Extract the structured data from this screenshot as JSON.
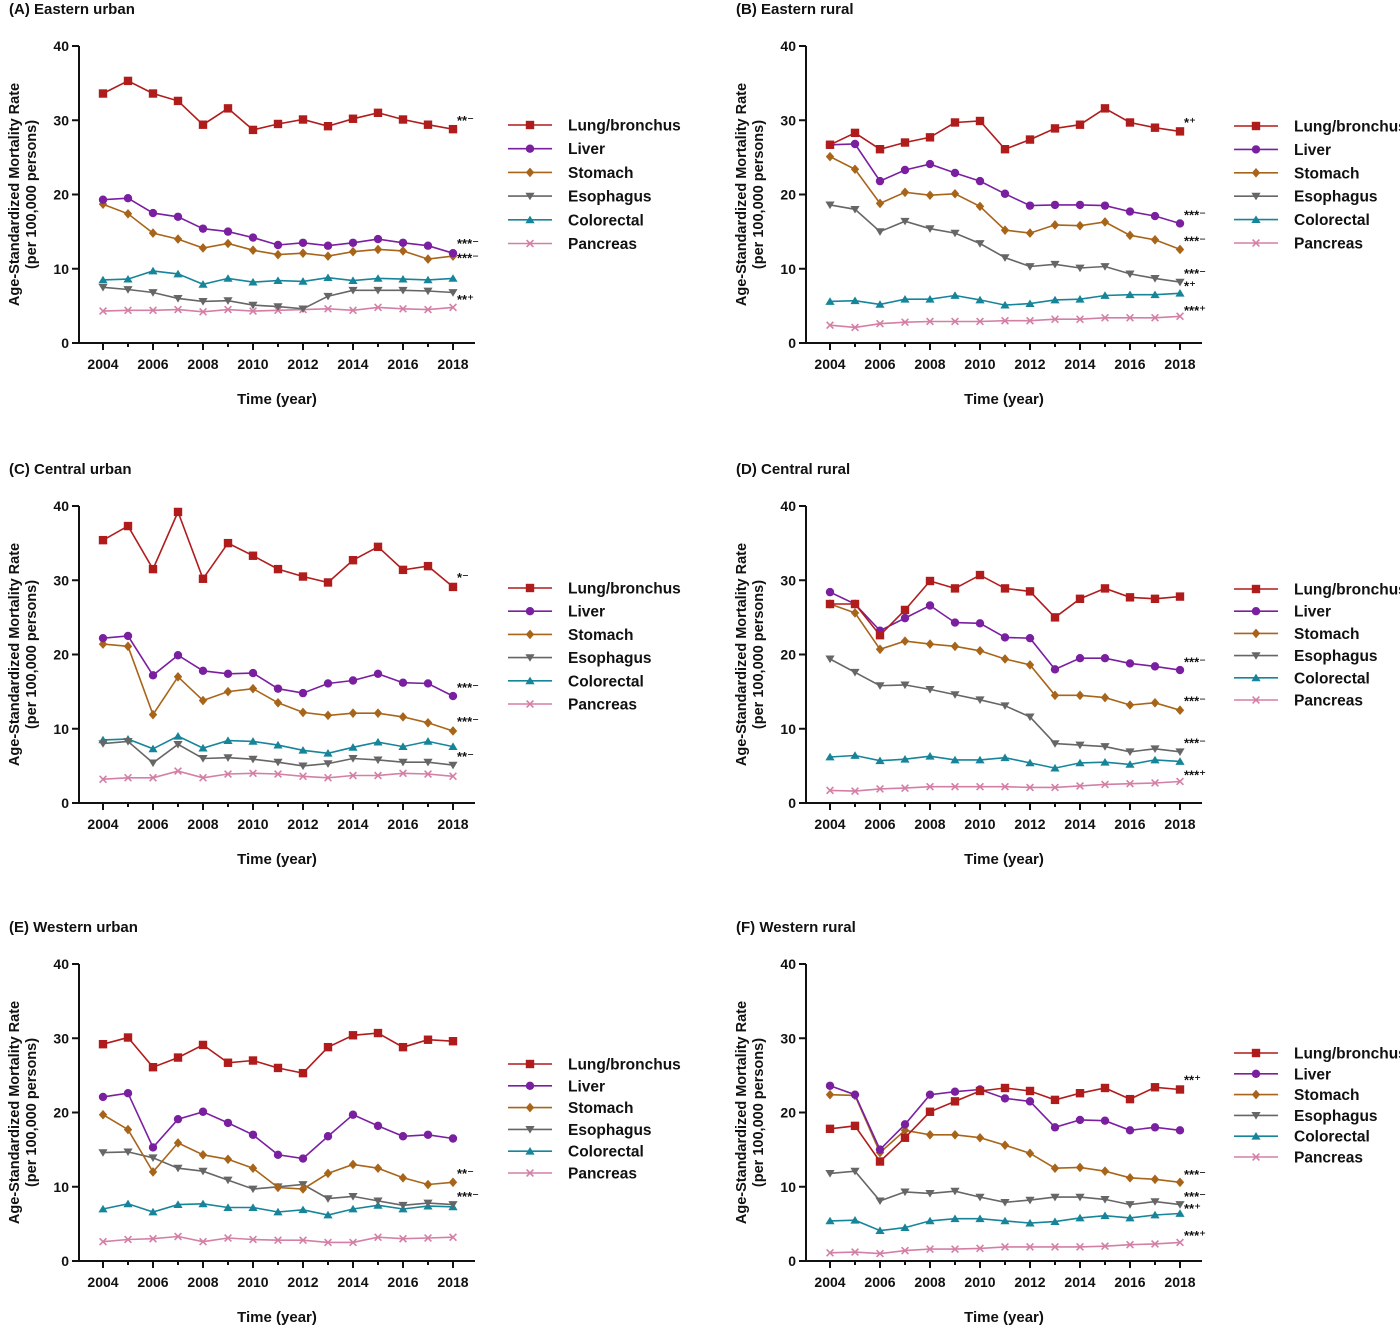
{
  "chart_data": [
    {
      "type": "line",
      "title": "(A) Eastern urban",
      "xlabel": "Time (year)",
      "ylabel": "Age-Standardized Mortality Rate",
      "ylabel2": "(per 100,000 persons)",
      "x": [
        2004,
        2005,
        2006,
        2007,
        2008,
        2009,
        2010,
        2011,
        2012,
        2013,
        2014,
        2015,
        2016,
        2017,
        2018
      ],
      "xticks": [
        2004,
        2006,
        2008,
        2010,
        2012,
        2014,
        2016,
        2018
      ],
      "yticks": [
        0,
        10,
        20,
        30,
        40
      ],
      "ylim": [
        0,
        40
      ],
      "grid": false,
      "legend_position": "right",
      "series": [
        {
          "name": "Lung/bronchus",
          "values": [
            33.6,
            35.3,
            33.6,
            32.6,
            29.4,
            31.6,
            28.7,
            29.5,
            30.1,
            29.2,
            30.2,
            31.0,
            30.1,
            29.4,
            28.8
          ]
        },
        {
          "name": "Liver",
          "values": [
            19.3,
            19.5,
            17.5,
            17.0,
            15.4,
            15.0,
            14.2,
            13.2,
            13.5,
            13.1,
            13.5,
            14.0,
            13.5,
            13.1,
            12.1
          ]
        },
        {
          "name": "Stomach",
          "values": [
            18.7,
            17.4,
            14.8,
            14.0,
            12.8,
            13.4,
            12.5,
            11.9,
            12.1,
            11.7,
            12.3,
            12.6,
            12.4,
            11.3,
            11.7
          ]
        },
        {
          "name": "Esophagus",
          "values": [
            7.5,
            7.2,
            6.8,
            6.0,
            5.6,
            5.7,
            5.1,
            4.9,
            4.6,
            6.3,
            7.1,
            7.1,
            7.1,
            7.0,
            6.8
          ]
        },
        {
          "name": "Colorectal",
          "values": [
            8.5,
            8.6,
            9.7,
            9.3,
            7.9,
            8.7,
            8.2,
            8.4,
            8.3,
            8.8,
            8.4,
            8.7,
            8.6,
            8.5,
            8.7
          ]
        },
        {
          "name": "Pancreas",
          "values": [
            4.3,
            4.4,
            4.4,
            4.5,
            4.2,
            4.5,
            4.3,
            4.4,
            4.5,
            4.6,
            4.4,
            4.8,
            4.6,
            4.5,
            4.8
          ]
        }
      ],
      "annotations": [
        {
          "text": "**⁻",
          "y": 29.9
        },
        {
          "text": "***⁻",
          "y": 13.3
        },
        {
          "text": "***⁻",
          "y": 11.4
        },
        {
          "text": "**⁺",
          "y": 5.8
        }
      ]
    },
    {
      "type": "line",
      "title": "(B) Eastern rural",
      "xlabel": "Time (year)",
      "ylabel": "Age-Standardized Mortality Rate",
      "ylabel2": "(per 100,000 persons)",
      "x": [
        2004,
        2005,
        2006,
        2007,
        2008,
        2009,
        2010,
        2011,
        2012,
        2013,
        2014,
        2015,
        2016,
        2017,
        2018
      ],
      "xticks": [
        2004,
        2006,
        2008,
        2010,
        2012,
        2014,
        2016,
        2018
      ],
      "yticks": [
        0,
        10,
        20,
        30,
        40
      ],
      "ylim": [
        0,
        40
      ],
      "grid": false,
      "legend_position": "right",
      "series": [
        {
          "name": "Lung/bronchus",
          "values": [
            26.7,
            28.3,
            26.1,
            27.0,
            27.7,
            29.7,
            29.9,
            26.1,
            27.4,
            28.9,
            29.4,
            31.6,
            29.7,
            29.0,
            28.5
          ]
        },
        {
          "name": "Liver",
          "values": [
            26.7,
            26.8,
            21.8,
            23.3,
            24.1,
            22.9,
            21.8,
            20.1,
            18.5,
            18.6,
            18.6,
            18.5,
            17.7,
            17.1,
            16.1
          ]
        },
        {
          "name": "Stomach",
          "values": [
            25.1,
            23.4,
            18.8,
            20.3,
            19.9,
            20.1,
            18.4,
            15.2,
            14.8,
            15.9,
            15.8,
            16.3,
            14.5,
            13.9,
            12.6
          ]
        },
        {
          "name": "Esophagus",
          "values": [
            18.6,
            18.0,
            15.0,
            16.4,
            15.4,
            14.8,
            13.4,
            11.5,
            10.3,
            10.6,
            10.1,
            10.3,
            9.3,
            8.7,
            8.2
          ]
        },
        {
          "name": "Colorectal",
          "values": [
            5.6,
            5.7,
            5.2,
            5.9,
            5.9,
            6.4,
            5.8,
            5.1,
            5.3,
            5.8,
            5.9,
            6.4,
            6.5,
            6.5,
            6.7
          ]
        },
        {
          "name": "Pancreas",
          "values": [
            2.4,
            2.1,
            2.6,
            2.8,
            2.9,
            2.9,
            2.9,
            3.0,
            3.0,
            3.2,
            3.2,
            3.4,
            3.4,
            3.4,
            3.6
          ]
        }
      ],
      "annotations": [
        {
          "text": "*⁺",
          "y": 29.6
        },
        {
          "text": "***⁻",
          "y": 17.2
        },
        {
          "text": "***⁻",
          "y": 13.7
        },
        {
          "text": "***⁻",
          "y": 9.3
        },
        {
          "text": "*⁺",
          "y": 7.6
        },
        {
          "text": "***⁺",
          "y": 4.3
        }
      ]
    },
    {
      "type": "line",
      "title": "(C) Central urban",
      "xlabel": "Time (year)",
      "ylabel": "Age-Standardized Mortality Rate",
      "ylabel2": "(per 100,000 persons)",
      "x": [
        2004,
        2005,
        2006,
        2007,
        2008,
        2009,
        2010,
        2011,
        2012,
        2013,
        2014,
        2015,
        2016,
        2017,
        2018
      ],
      "xticks": [
        2004,
        2006,
        2008,
        2010,
        2012,
        2014,
        2016,
        2018
      ],
      "yticks": [
        0,
        10,
        20,
        30,
        40
      ],
      "ylim": [
        0,
        40
      ],
      "grid": false,
      "legend_position": "right",
      "series": [
        {
          "name": "Lung/bronchus",
          "values": [
            35.4,
            37.3,
            31.5,
            39.2,
            30.2,
            35.0,
            33.3,
            31.5,
            30.5,
            29.7,
            32.7,
            34.5,
            31.4,
            31.9,
            29.1
          ]
        },
        {
          "name": "Liver",
          "values": [
            22.2,
            22.5,
            17.2,
            19.9,
            17.8,
            17.4,
            17.5,
            15.4,
            14.8,
            16.1,
            16.5,
            17.4,
            16.2,
            16.1,
            14.4
          ]
        },
        {
          "name": "Stomach",
          "values": [
            21.4,
            21.1,
            11.9,
            17.0,
            13.8,
            15.0,
            15.4,
            13.5,
            12.2,
            11.8,
            12.1,
            12.1,
            11.6,
            10.8,
            9.7
          ]
        },
        {
          "name": "Esophagus",
          "values": [
            8.0,
            8.3,
            5.4,
            7.9,
            6.0,
            6.1,
            5.9,
            5.5,
            5.0,
            5.3,
            6.0,
            5.8,
            5.5,
            5.5,
            5.1
          ]
        },
        {
          "name": "Colorectal",
          "values": [
            8.5,
            8.6,
            7.3,
            9.0,
            7.4,
            8.4,
            8.3,
            7.8,
            7.1,
            6.7,
            7.5,
            8.2,
            7.6,
            8.3,
            7.6
          ]
        },
        {
          "name": "Pancreas",
          "values": [
            3.2,
            3.4,
            3.4,
            4.3,
            3.4,
            3.9,
            4.0,
            3.9,
            3.6,
            3.4,
            3.7,
            3.7,
            4.0,
            3.9,
            3.6
          ]
        }
      ],
      "annotations": [
        {
          "text": "*⁻",
          "y": 30.3
        },
        {
          "text": "***⁻",
          "y": 15.5
        },
        {
          "text": "***⁻",
          "y": 10.9
        },
        {
          "text": "**⁻",
          "y": 6.2
        }
      ]
    },
    {
      "type": "line",
      "title": "(D) Central rural",
      "xlabel": "Time (year)",
      "ylabel": "Age-Standardized Mortality Rate",
      "ylabel2": "(per 100,000 persons)",
      "x": [
        2004,
        2005,
        2006,
        2007,
        2008,
        2009,
        2010,
        2011,
        2012,
        2013,
        2014,
        2015,
        2016,
        2017,
        2018
      ],
      "xticks": [
        2004,
        2006,
        2008,
        2010,
        2012,
        2014,
        2016,
        2018
      ],
      "yticks": [
        0,
        10,
        20,
        30,
        40
      ],
      "ylim": [
        0,
        40
      ],
      "grid": false,
      "legend_position": "right",
      "series": [
        {
          "name": "Lung/bronchus",
          "values": [
            26.8,
            26.8,
            22.6,
            26.0,
            29.9,
            28.9,
            30.7,
            28.9,
            28.5,
            25.0,
            27.5,
            28.9,
            27.7,
            27.5,
            27.8
          ]
        },
        {
          "name": "Liver",
          "values": [
            28.4,
            26.8,
            23.2,
            24.9,
            26.6,
            24.3,
            24.2,
            22.3,
            22.2,
            18.0,
            19.5,
            19.5,
            18.8,
            18.4,
            17.9
          ]
        },
        {
          "name": "Stomach",
          "values": [
            26.8,
            25.6,
            20.7,
            21.8,
            21.4,
            21.1,
            20.5,
            19.4,
            18.6,
            14.5,
            14.5,
            14.2,
            13.2,
            13.5,
            12.5
          ]
        },
        {
          "name": "Esophagus",
          "values": [
            19.4,
            17.6,
            15.8,
            15.9,
            15.3,
            14.6,
            13.9,
            13.1,
            11.6,
            8.0,
            7.8,
            7.6,
            6.9,
            7.3,
            6.9
          ]
        },
        {
          "name": "Colorectal",
          "values": [
            6.2,
            6.4,
            5.7,
            5.9,
            6.3,
            5.8,
            5.8,
            6.1,
            5.4,
            4.7,
            5.4,
            5.5,
            5.2,
            5.8,
            5.6
          ]
        },
        {
          "name": "Pancreas",
          "values": [
            1.7,
            1.6,
            1.9,
            2.0,
            2.2,
            2.2,
            2.2,
            2.2,
            2.1,
            2.1,
            2.3,
            2.5,
            2.6,
            2.7,
            2.9
          ]
        }
      ],
      "annotations": [
        {
          "text": "***⁻",
          "y": 18.9
        },
        {
          "text": "***⁻",
          "y": 13.7
        },
        {
          "text": "***⁻",
          "y": 8.0
        },
        {
          "text": "***⁺",
          "y": 3.7
        }
      ]
    },
    {
      "type": "line",
      "title": "(E) Western urban",
      "xlabel": "Time (year)",
      "ylabel": "Age-Standardized Mortality Rate",
      "ylabel2": "(per 100,000 persons)",
      "x": [
        2004,
        2005,
        2006,
        2007,
        2008,
        2009,
        2010,
        2011,
        2012,
        2013,
        2014,
        2015,
        2016,
        2017,
        2018
      ],
      "xticks": [
        2004,
        2006,
        2008,
        2010,
        2012,
        2014,
        2016,
        2018
      ],
      "yticks": [
        0,
        10,
        20,
        30,
        40
      ],
      "ylim": [
        0,
        40
      ],
      "grid": false,
      "legend_position": "right",
      "series": [
        {
          "name": "Lung/bronchus",
          "values": [
            29.2,
            30.1,
            26.1,
            27.4,
            29.1,
            26.7,
            27.0,
            26.0,
            25.3,
            28.8,
            30.4,
            30.7,
            28.8,
            29.8,
            29.6
          ]
        },
        {
          "name": "Liver",
          "values": [
            22.1,
            22.6,
            15.3,
            19.1,
            20.1,
            18.6,
            17.0,
            14.3,
            13.8,
            16.8,
            19.7,
            18.2,
            16.8,
            17.0,
            16.5
          ]
        },
        {
          "name": "Stomach",
          "values": [
            19.7,
            17.7,
            12.0,
            15.9,
            14.3,
            13.7,
            12.5,
            9.9,
            9.7,
            11.8,
            13.0,
            12.5,
            11.2,
            10.3,
            10.6
          ]
        },
        {
          "name": "Esophagus",
          "values": [
            14.6,
            14.7,
            13.9,
            12.5,
            12.1,
            10.9,
            9.7,
            10.0,
            10.3,
            8.4,
            8.7,
            8.1,
            7.5,
            7.8,
            7.6
          ]
        },
        {
          "name": "Colorectal",
          "values": [
            7.0,
            7.7,
            6.6,
            7.6,
            7.7,
            7.2,
            7.2,
            6.6,
            6.9,
            6.2,
            7.0,
            7.5,
            7.0,
            7.4,
            7.3
          ]
        },
        {
          "name": "Pancreas",
          "values": [
            2.6,
            2.9,
            3.0,
            3.3,
            2.6,
            3.1,
            2.9,
            2.8,
            2.8,
            2.5,
            2.5,
            3.2,
            3.0,
            3.1,
            3.2
          ]
        }
      ],
      "annotations": [
        {
          "text": "**⁻",
          "y": 11.7
        },
        {
          "text": "***⁻",
          "y": 8.6
        }
      ]
    },
    {
      "type": "line",
      "title": "(F) Western rural",
      "xlabel": "Time (year)",
      "ylabel": "Age-Standardized Mortality Rate",
      "ylabel2": "(per 100,000 persons)",
      "x": [
        2004,
        2005,
        2006,
        2007,
        2008,
        2009,
        2010,
        2011,
        2012,
        2013,
        2014,
        2015,
        2016,
        2017,
        2018
      ],
      "xticks": [
        2004,
        2006,
        2008,
        2010,
        2012,
        2014,
        2016,
        2018
      ],
      "yticks": [
        0,
        10,
        20,
        30,
        40
      ],
      "ylim": [
        0,
        40
      ],
      "grid": false,
      "legend_position": "right",
      "series": [
        {
          "name": "Lung/bronchus",
          "values": [
            17.8,
            18.2,
            13.4,
            16.6,
            20.1,
            21.5,
            22.9,
            23.3,
            22.9,
            21.7,
            22.6,
            23.3,
            21.8,
            23.4,
            23.1
          ]
        },
        {
          "name": "Liver",
          "values": [
            23.6,
            22.4,
            15.0,
            18.4,
            22.4,
            22.8,
            23.1,
            21.9,
            21.5,
            18.0,
            19.0,
            18.9,
            17.6,
            18.0,
            17.6
          ]
        },
        {
          "name": "Stomach",
          "values": [
            22.4,
            22.3,
            14.6,
            17.6,
            17.0,
            17.0,
            16.6,
            15.6,
            14.5,
            12.5,
            12.6,
            12.1,
            11.2,
            11.0,
            10.6
          ]
        },
        {
          "name": "Esophagus",
          "values": [
            11.8,
            12.1,
            8.1,
            9.3,
            9.1,
            9.4,
            8.6,
            7.9,
            8.2,
            8.6,
            8.6,
            8.3,
            7.6,
            8.0,
            7.6
          ]
        },
        {
          "name": "Colorectal",
          "values": [
            5.4,
            5.5,
            4.1,
            4.5,
            5.4,
            5.7,
            5.7,
            5.4,
            5.1,
            5.3,
            5.8,
            6.1,
            5.8,
            6.2,
            6.4
          ]
        },
        {
          "name": "Pancreas",
          "values": [
            1.1,
            1.2,
            1.0,
            1.4,
            1.6,
            1.6,
            1.7,
            1.9,
            1.9,
            1.9,
            1.9,
            2.0,
            2.2,
            2.3,
            2.5
          ]
        }
      ],
      "annotations": [
        {
          "text": "**⁺",
          "y": 24.3
        },
        {
          "text": "***⁻",
          "y": 11.6
        },
        {
          "text": "***⁻",
          "y": 8.6
        },
        {
          "text": "**⁺",
          "y": 7.0
        },
        {
          "text": "***⁺",
          "y": 3.4
        }
      ]
    }
  ],
  "styles": {
    "series_colors": [
      "#b01c1c",
      "#7a1fa0",
      "#a8651a",
      "#666666",
      "#16859a",
      "#d47fa6"
    ],
    "markers": [
      "square",
      "circle",
      "diamond",
      "triangle-down",
      "triangle-up",
      "x"
    ],
    "axis_color": "#111111"
  }
}
